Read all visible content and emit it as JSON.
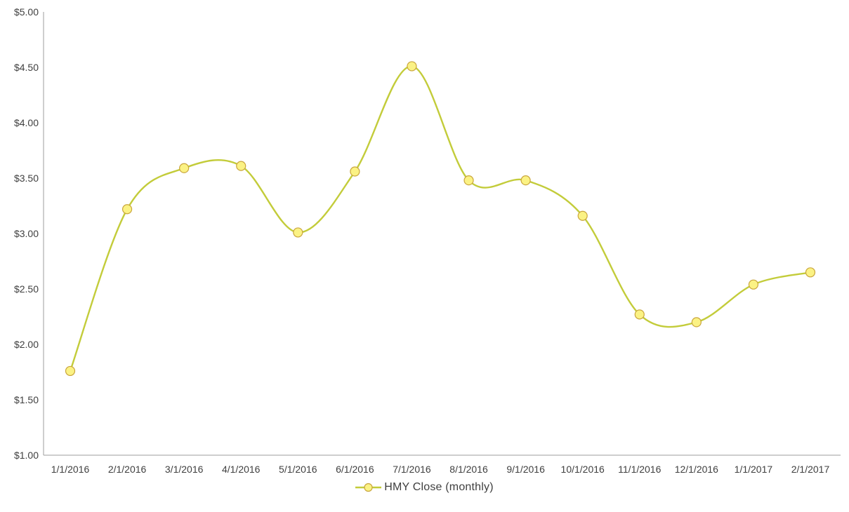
{
  "chart_data": {
    "type": "line",
    "title": "",
    "legend_label": "HMY Close (monthly)",
    "legend_position": "bottom",
    "grid": false,
    "smooth": true,
    "categories": [
      "1/1/2016",
      "2/1/2016",
      "3/1/2016",
      "4/1/2016",
      "5/1/2016",
      "6/1/2016",
      "7/1/2016",
      "8/1/2016",
      "9/1/2016",
      "10/1/2016",
      "11/1/2016",
      "12/1/2016",
      "1/1/2017",
      "2/1/2017"
    ],
    "series": [
      {
        "name": "HMY Close (monthly)",
        "values": [
          1.76,
          3.22,
          3.59,
          3.61,
          3.01,
          3.56,
          4.51,
          3.48,
          3.48,
          3.16,
          2.27,
          2.2,
          2.54,
          2.65
        ]
      }
    ],
    "y_axis": {
      "min": 1.0,
      "max": 5.0,
      "step": 0.5,
      "tick_labels_top_to_bottom": [
        "$5.00",
        "$4.50",
        "$4.00",
        "$3.50",
        "$3.00",
        "$2.50",
        "$2.00",
        "$1.50",
        "$1.00"
      ]
    },
    "colors": {
      "line": "#c3cc3a",
      "marker_fill": "#fbf284",
      "marker_stroke": "#c9a53c",
      "axis": "#9e9e9e",
      "text": "#3f3f3f"
    }
  }
}
